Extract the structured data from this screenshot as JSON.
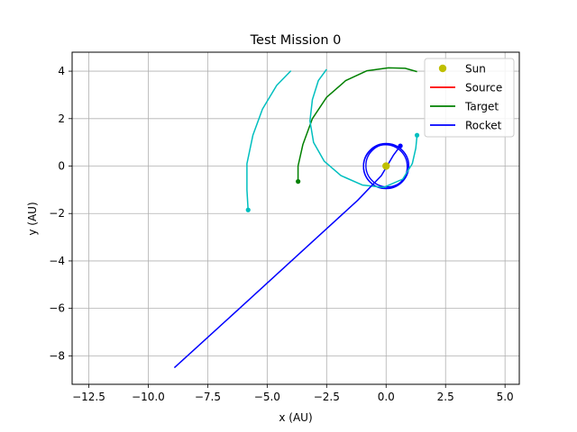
{
  "chart_data": {
    "type": "line",
    "title": "Test Mission 0",
    "xlabel": "x (AU)",
    "ylabel": "y (AU)",
    "xlim": [
      -13.2,
      5.6
    ],
    "ylim": [
      -9.2,
      4.8
    ],
    "xticks": [
      -12.5,
      -10.0,
      -7.5,
      -5.0,
      -2.5,
      0.0,
      2.5,
      5.0
    ],
    "yticks": [
      -8,
      -6,
      -4,
      -2,
      0,
      2,
      4
    ],
    "xtick_labels": [
      "−12.5",
      "−10.0",
      "−7.5",
      "−5.0",
      "−2.5",
      "0.0",
      "2.5",
      "5.0"
    ],
    "ytick_labels": [
      "−8",
      "−6",
      "−4",
      "−2",
      "0",
      "2",
      "4"
    ],
    "grid": true,
    "legend_position": "top-right",
    "legend": [
      {
        "label": "Sun",
        "color": "#bfbf00",
        "marker": "circle"
      },
      {
        "label": "Source",
        "color": "#ff0000",
        "marker": "line"
      },
      {
        "label": "Target",
        "color": "#008000",
        "marker": "line"
      },
      {
        "label": "Rocket",
        "color": "#0000ff",
        "marker": "line"
      }
    ],
    "sun": {
      "x": 0.0,
      "y": 0.0,
      "color": "#bfbf00"
    },
    "series": [
      {
        "name": "Target",
        "color": "#008000",
        "end_marker": true,
        "points": [
          [
            1.3,
            3.98
          ],
          [
            0.8,
            4.12
          ],
          [
            0.1,
            4.14
          ],
          [
            -0.8,
            4.02
          ],
          [
            -1.7,
            3.6
          ],
          [
            -2.5,
            2.9
          ],
          [
            -3.1,
            2.0
          ],
          [
            -3.5,
            0.9
          ],
          [
            -3.7,
            0.0
          ],
          [
            -3.7,
            -0.65
          ]
        ]
      },
      {
        "color": "#00bfbf",
        "end_marker": true,
        "points": [
          [
            -4.0,
            4.02
          ],
          [
            -4.6,
            3.4
          ],
          [
            -5.2,
            2.4
          ],
          [
            -5.6,
            1.3
          ],
          [
            -5.85,
            0.1
          ],
          [
            -5.85,
            -1.0
          ],
          [
            -5.8,
            -1.85
          ]
        ]
      },
      {
        "color": "#00bfbf",
        "end_marker": true,
        "points": [
          [
            -2.5,
            4.08
          ],
          [
            -2.85,
            3.6
          ],
          [
            -3.1,
            2.8
          ],
          [
            -3.2,
            1.9
          ],
          [
            -3.05,
            1.0
          ],
          [
            -2.6,
            0.2
          ],
          [
            -1.9,
            -0.4
          ],
          [
            -1.0,
            -0.8
          ],
          [
            -0.1,
            -0.9
          ],
          [
            0.7,
            -0.55
          ],
          [
            1.1,
            0.1
          ],
          [
            1.25,
            0.75
          ],
          [
            1.3,
            1.3
          ]
        ]
      },
      {
        "name": "Rocket",
        "color": "#0000ff",
        "end_marker": true,
        "points": [
          [
            -8.9,
            -8.5
          ],
          [
            -6.0,
            -5.85
          ],
          [
            -3.0,
            -3.1
          ],
          [
            -1.2,
            -1.45
          ],
          [
            -0.2,
            -0.4
          ],
          [
            0.3,
            0.45
          ],
          [
            0.6,
            0.85
          ]
        ]
      }
    ],
    "orbits": [
      {
        "cx": 0.0,
        "cy": 0.0,
        "r": 0.95,
        "color": "#0000ff"
      },
      {
        "cx": 0.05,
        "cy": 0.02,
        "r": 0.9,
        "color": "#0000ff"
      },
      {
        "cx": -0.03,
        "cy": -0.02,
        "r": 0.92,
        "color": "#0000ff"
      }
    ]
  }
}
